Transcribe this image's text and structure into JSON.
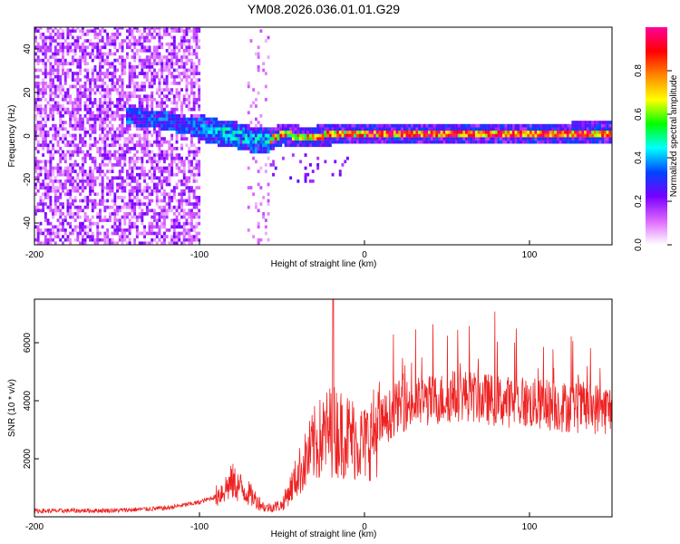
{
  "figure": {
    "title": "YM08.2026.036.01.01.G29"
  },
  "chart_data": [
    {
      "type": "heatmap",
      "name": "spectrogram",
      "xlabel": "Height of straight line (km)",
      "ylabel": "Frequency (Hz)",
      "xlim": [
        -200,
        150
      ],
      "ylim": [
        -50,
        50
      ],
      "xticks": [
        -200,
        -100,
        0,
        100
      ],
      "yticks": [
        -40,
        -20,
        0,
        20,
        40
      ],
      "ridge_frequency_hz": [
        {
          "x": -140,
          "y": 8
        },
        {
          "x": -130,
          "y": 7
        },
        {
          "x": -120,
          "y": 6
        },
        {
          "x": -110,
          "y": 4
        },
        {
          "x": -100,
          "y": 3
        },
        {
          "x": -90,
          "y": 1
        },
        {
          "x": -80,
          "y": 0
        },
        {
          "x": -70,
          "y": -2
        },
        {
          "x": -60,
          "y": -3
        },
        {
          "x": -50,
          "y": 0
        },
        {
          "x": -40,
          "y": -1
        },
        {
          "x": -30,
          "y": -1
        },
        {
          "x": -20,
          "y": 0
        },
        {
          "x": -10,
          "y": 0
        },
        {
          "x": 0,
          "y": 0
        },
        {
          "x": 50,
          "y": 0
        },
        {
          "x": 100,
          "y": 0
        },
        {
          "x": 150,
          "y": 1
        }
      ],
      "colorbar": {
        "label": "Normalized spectral amplitude",
        "range": [
          0,
          1
        ],
        "ticks": [
          "0.0",
          "0.2",
          "0.4",
          "0.6",
          "0.8"
        ],
        "colors": [
          "#ffffff",
          "#dd66ff",
          "#7700ff",
          "#0044ff",
          "#00ffff",
          "#00ff00",
          "#ffff00",
          "#ff8800",
          "#ff0000",
          "#ff0099"
        ]
      }
    },
    {
      "type": "line",
      "name": "snr",
      "xlabel": "Height of straight line (km)",
      "ylabel": "SNR (10 * v/v)",
      "xlim": [
        -200,
        150
      ],
      "ylim": [
        0,
        7500
      ],
      "xticks": [
        -200,
        -100,
        0,
        100
      ],
      "yticks": [
        2000,
        4000,
        6000
      ],
      "series": [
        {
          "name": "SNR",
          "color": "#ee2222",
          "points": [
            {
              "x": -200,
              "y": 200
            },
            {
              "x": -150,
              "y": 220
            },
            {
              "x": -120,
              "y": 300
            },
            {
              "x": -100,
              "y": 500
            },
            {
              "x": -90,
              "y": 700
            },
            {
              "x": -80,
              "y": 1200
            },
            {
              "x": -70,
              "y": 800
            },
            {
              "x": -60,
              "y": 300
            },
            {
              "x": -50,
              "y": 400
            },
            {
              "x": -40,
              "y": 1500
            },
            {
              "x": -30,
              "y": 2500
            },
            {
              "x": -20,
              "y": 3000
            },
            {
              "x": -10,
              "y": 2800
            },
            {
              "x": 0,
              "y": 2500
            },
            {
              "x": 10,
              "y": 3200
            },
            {
              "x": 20,
              "y": 3800
            },
            {
              "x": 40,
              "y": 4000
            },
            {
              "x": 60,
              "y": 4200
            },
            {
              "x": 80,
              "y": 4000
            },
            {
              "x": 100,
              "y": 3900
            },
            {
              "x": 120,
              "y": 3800
            },
            {
              "x": 150,
              "y": 3700
            }
          ],
          "peak": {
            "x": -19,
            "y": 7500
          }
        }
      ]
    }
  ]
}
